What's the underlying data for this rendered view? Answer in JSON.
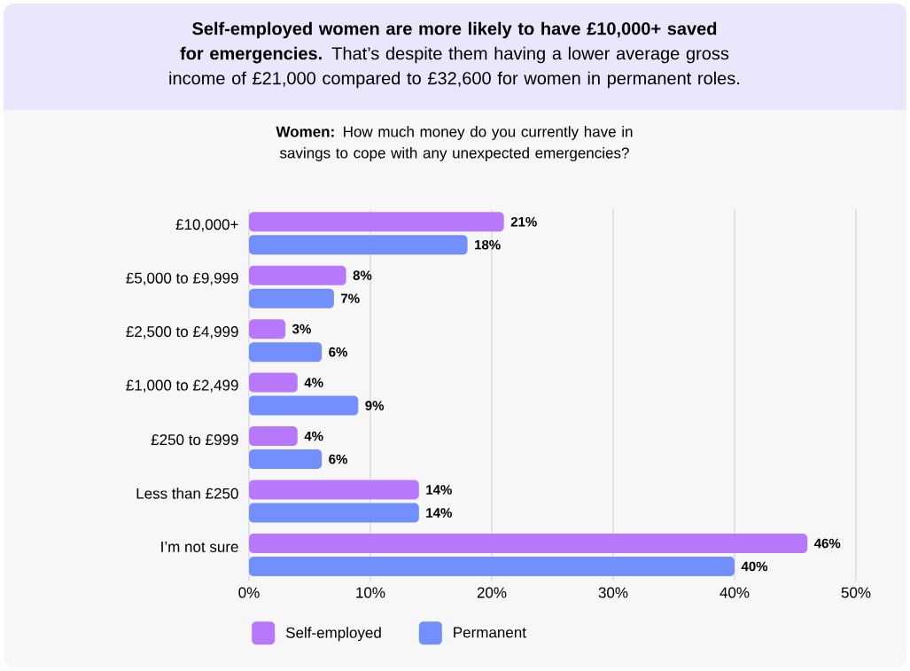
{
  "chart_data": {
    "type": "bar",
    "orientation": "horizontal",
    "title": "**Self-employed women are more likely to have £10,000+ saved for emergencies.** That’s despite them having a lower average gross income of £21,000 compared to £32,600 for women in permanent roles.",
    "subtitle": "**Women:** How much money do you currently have in savings to cope with any unexpected emergencies?",
    "categories": [
      "£10,000+",
      "£5,000 to £9,999",
      "£2,500 to £4,999",
      "£1,000 to £2,499",
      "£250 to £999",
      "Less than £250",
      "I’m not sure"
    ],
    "series": [
      {
        "name": "Self-employed",
        "color": "#b878fc",
        "values": [
          21,
          8,
          3,
          4,
          4,
          14,
          46
        ],
        "value_labels": [
          "21%",
          "8%",
          "3%",
          "4%",
          "4%",
          "14%",
          "46%"
        ]
      },
      {
        "name": "Permanent",
        "color": "#738ffc",
        "values": [
          18,
          7,
          6,
          9,
          6,
          14,
          40
        ],
        "value_labels": [
          "18%",
          "7%",
          "6%",
          "9%",
          "6%",
          "14%",
          "40%"
        ]
      }
    ],
    "xlim": [
      0,
      50
    ],
    "xticks": [
      {
        "value": 0,
        "label": "0%"
      },
      {
        "value": 10,
        "label": "10%"
      },
      {
        "value": 20,
        "label": "20%"
      },
      {
        "value": 30,
        "label": "30%"
      },
      {
        "value": 40,
        "label": "40%"
      },
      {
        "value": 50,
        "label": "50%"
      }
    ],
    "grid": "x",
    "legend": "bottom"
  }
}
